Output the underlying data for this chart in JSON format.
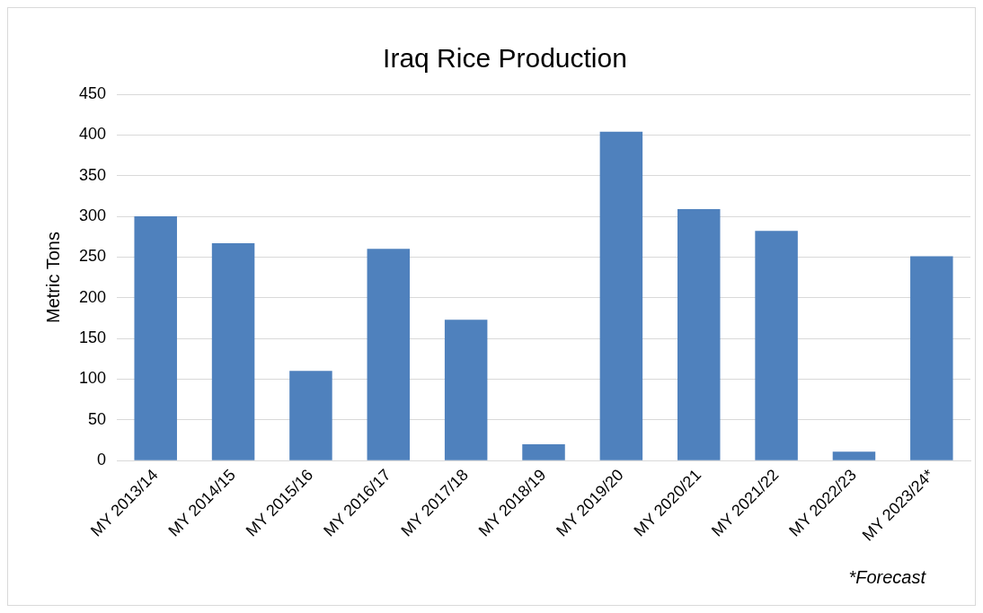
{
  "chart_data": {
    "type": "bar",
    "title": "Iraq Rice Production",
    "ylabel": "Metric Tons",
    "categories": [
      "MY 2013/14",
      "MY 2014/15",
      "MY 2015/16",
      "MY 2016/17",
      "MY 2017/18",
      "MY 2018/19",
      "MY 2019/20",
      "MY 2020/21",
      "MY 2021/22",
      "MY 2022/23",
      "MY 2023/24*"
    ],
    "values": [
      300,
      267,
      110,
      260,
      173,
      20,
      404,
      309,
      282,
      11,
      251
    ],
    "color": "#4f81bd",
    "ylim": [
      0,
      450
    ],
    "yticks": [
      0,
      50,
      100,
      150,
      200,
      250,
      300,
      350,
      400,
      450
    ],
    "grid": "y",
    "legend": false,
    "annotations": [
      "*Forecast"
    ]
  }
}
